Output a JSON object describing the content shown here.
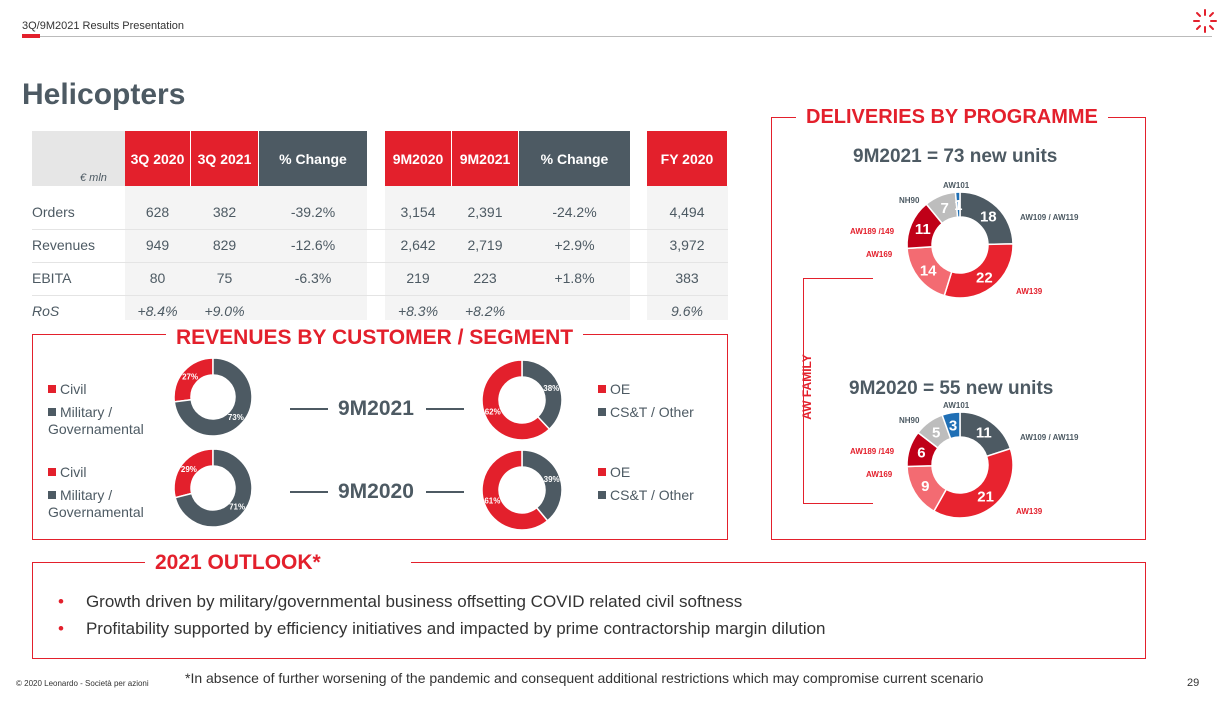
{
  "header": {
    "title": "3Q/9M2021 Results Presentation"
  },
  "page_title": "Helicopters",
  "table": {
    "unit": "€ mln",
    "columns": [
      "3Q 2020",
      "3Q 2021",
      "% Change",
      "9M2020",
      "9M2021",
      "% Change",
      "FY 2020"
    ],
    "rows": [
      {
        "label": "Orders",
        "values": [
          "628",
          "382",
          "-39.2%",
          "3,154",
          "2,391",
          "-24.2%",
          "4,494"
        ]
      },
      {
        "label": "Revenues",
        "values": [
          "949",
          "829",
          "-12.6%",
          "2,642",
          "2,719",
          "+2.9%",
          "3,972"
        ]
      },
      {
        "label": "EBITA",
        "values": [
          "80",
          "75",
          "-6.3%",
          "219",
          "223",
          "+1.8%",
          "383"
        ]
      },
      {
        "label": "RoS",
        "values": [
          "+8.4%",
          "+9.0%",
          "",
          "+8.3%",
          "+8.2%",
          "",
          "9.6%"
        ]
      }
    ]
  },
  "revenues": {
    "title": "REVENUES BY CUSTOMER / SEGMENT",
    "customer_legend": [
      "Civil",
      "Military / Governamental"
    ],
    "segment_legend": [
      "OE",
      "CS&T / Other"
    ],
    "periods": [
      "9M2021",
      "9M2020"
    ],
    "colors": {
      "red": "#e3202c",
      "gray": "#4d5a63"
    }
  },
  "chart_data": [
    {
      "type": "pie",
      "title": "Customer 9M2021",
      "categories": [
        "Civil",
        "Military / Governamental"
      ],
      "values": [
        27,
        73
      ],
      "labels": [
        "27%",
        "73%"
      ]
    },
    {
      "type": "pie",
      "title": "Customer 9M2020",
      "categories": [
        "Civil",
        "Military / Governamental"
      ],
      "values": [
        29,
        71
      ],
      "labels": [
        "29%",
        "71%"
      ]
    },
    {
      "type": "pie",
      "title": "Segment 9M2021",
      "categories": [
        "CS&T / Other",
        "OE"
      ],
      "values": [
        38,
        62
      ],
      "labels": [
        "38%",
        "62%"
      ]
    },
    {
      "type": "pie",
      "title": "Segment 9M2020",
      "categories": [
        "CS&T / Other",
        "OE"
      ],
      "values": [
        39,
        61
      ],
      "labels": [
        "39%",
        "61%"
      ]
    },
    {
      "type": "pie",
      "title": "9M2021 = 73 new units",
      "categories": [
        "AW109 / AW119",
        "AW139",
        "AW169",
        "AW189 /149",
        "NH90",
        "AW101"
      ],
      "values": [
        18,
        22,
        14,
        11,
        7,
        1
      ],
      "labels": [
        "18",
        "22",
        "14",
        "11",
        "7",
        "1"
      ]
    },
    {
      "type": "pie",
      "title": "9M2020 = 55 new units",
      "categories": [
        "AW109 / AW119",
        "AW139",
        "AW169",
        "AW189 /149",
        "NH90",
        "AW101"
      ],
      "values": [
        11,
        21,
        9,
        6,
        5,
        3
      ],
      "labels": [
        "11",
        "21",
        "9",
        "6",
        "5",
        "3"
      ]
    }
  ],
  "deliveries": {
    "title": "DELIVERIES BY PROGRAMME",
    "family": "AW FAMILY",
    "colors": [
      "#4d5a63",
      "#e8232f",
      "#f36b72",
      "#c00018",
      "#bdbdbd",
      "#1f6fb5"
    ]
  },
  "outlook": {
    "title": "2021 OUTLOOK*",
    "bullets": [
      "Growth driven by military/governmental business offsetting COVID related civil softness",
      "Profitability supported by efficiency initiatives and impacted by prime contractorship margin dilution"
    ],
    "footnote": "*In absence of further worsening of the pandemic and consequent additional restrictions which may compromise current scenario"
  },
  "footer": {
    "copyright": "© 2020 Leonardo - Società per azioni",
    "page": "29"
  }
}
